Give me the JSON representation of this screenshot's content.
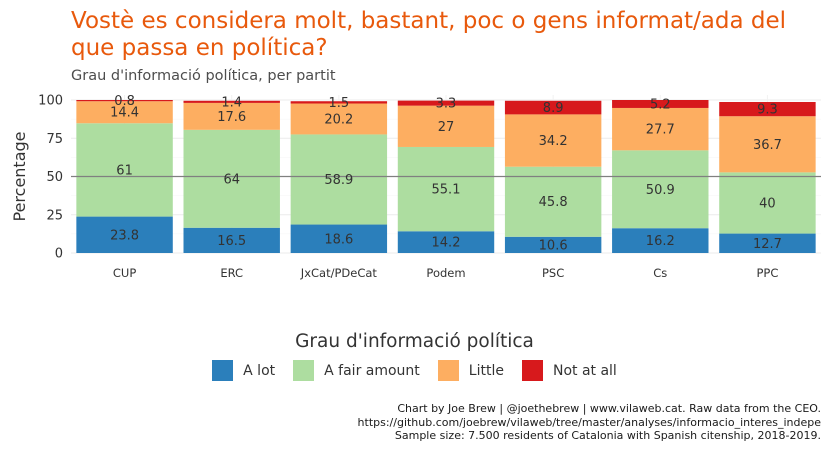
{
  "title": "Vostè es considera molt, bastant, poc o gens informat/ada del que passa en política?",
  "subtitle": "Grau d'informació política, per partit",
  "legend": {
    "title": "Grau d'informació política",
    "items": [
      {
        "label": "A lot",
        "color": "#2b7fbb"
      },
      {
        "label": "A fair amount",
        "color": "#addda0"
      },
      {
        "label": "Little",
        "color": "#fdae61"
      },
      {
        "label": "Not at all",
        "color": "#d7191c"
      }
    ]
  },
  "caption": {
    "line1": "Chart by Joe Brew | @joethebrew | www.vilaweb.cat. Raw data from the CEO.",
    "line2": "https://github.com/joebrew/vilaweb/tree/master/analyses/informacio_interes_indepe",
    "line3": "Sample size: 7.500 residents of Catalonia with Spanish citenship, 2018-2019."
  },
  "chart_data": {
    "type": "bar",
    "stacked": true,
    "ylabel": "Percentage",
    "xlabel": "",
    "ylim": [
      0,
      100
    ],
    "yticks": [
      0,
      25,
      50,
      75,
      100
    ],
    "reference_line": 50,
    "categories": [
      "CUP",
      "ERC",
      "JxCat/PDeCat",
      "Podem",
      "PSC",
      "Cs",
      "PPC"
    ],
    "series": [
      {
        "name": "A lot",
        "color": "#2b7fbb",
        "values": [
          23.8,
          16.5,
          18.6,
          14.2,
          10.6,
          16.2,
          12.7
        ]
      },
      {
        "name": "A fair amount",
        "color": "#addda0",
        "values": [
          61,
          64,
          58.9,
          55.1,
          45.8,
          50.9,
          40
        ]
      },
      {
        "name": "Little",
        "color": "#fdae61",
        "values": [
          14.4,
          17.6,
          20.2,
          27,
          34.2,
          27.7,
          36.7
        ]
      },
      {
        "name": "Not at all",
        "color": "#d7191c",
        "values": [
          0.8,
          1.4,
          1.5,
          3.3,
          8.9,
          5.2,
          9.3
        ]
      }
    ]
  }
}
